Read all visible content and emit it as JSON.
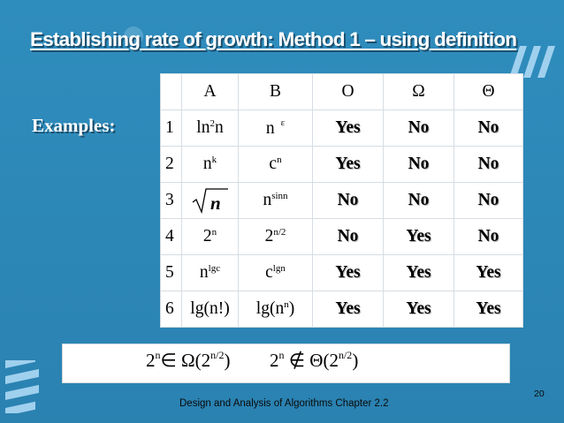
{
  "slide": {
    "title": "Establishing rate of growth: Method 1 – using definition",
    "examples_label": "Examples:",
    "footer": "Design and Analysis of Algorithms Chapter 2.2",
    "page_number": "20",
    "colors": {
      "background": "#2f8ab8",
      "yes": "#ff0000",
      "no": "#1f2d9e"
    }
  },
  "table": {
    "headers": [
      "A",
      "B",
      "O",
      "Ω",
      "Θ"
    ],
    "rows": [
      {
        "num": "1",
        "a_base": "ln",
        "a_sup": "2",
        "a_tail": "n",
        "b_base": "n",
        "b_sup": "ε",
        "o": "Yes",
        "omega": "No",
        "theta": "No"
      },
      {
        "num": "2",
        "a_base": "n",
        "a_sup": "k",
        "a_tail": "",
        "b_base": "c",
        "b_sup": "n",
        "o": "Yes",
        "omega": "No",
        "theta": "No"
      },
      {
        "num": "3",
        "a_base": "n",
        "a_sup": "",
        "a_tail": "",
        "b_base": "n",
        "b_sup": "sinn",
        "o": "No",
        "omega": "No",
        "theta": "No"
      },
      {
        "num": "4",
        "a_base": "2",
        "a_sup": "n",
        "a_tail": "",
        "b_base": "2",
        "b_sup": "n/2",
        "o": "No",
        "omega": "Yes",
        "theta": "No"
      },
      {
        "num": "5",
        "a_base": "n",
        "a_sup": "lgc",
        "a_tail": "",
        "b_base": "c",
        "b_sup": "lgn",
        "o": "Yes",
        "omega": "Yes",
        "theta": "Yes"
      },
      {
        "num": "6",
        "a_base": "lg(n!)",
        "a_sup": "",
        "a_tail": "",
        "b_base": "lg(n",
        "b_sup": "n",
        "b_tail": ")",
        "o": "Yes",
        "omega": "Yes",
        "theta": "Yes"
      }
    ]
  },
  "formula": {
    "left_base": "2",
    "left_exp": "n",
    "left_rel": "∈",
    "left_class": "Ω(2",
    "left_class_exp": "n/2",
    "left_close": ")",
    "right_base": "2",
    "right_exp": "n",
    "right_rel": "∉",
    "right_class": "Θ(2",
    "right_class_exp": "n/2",
    "right_close": ")"
  }
}
